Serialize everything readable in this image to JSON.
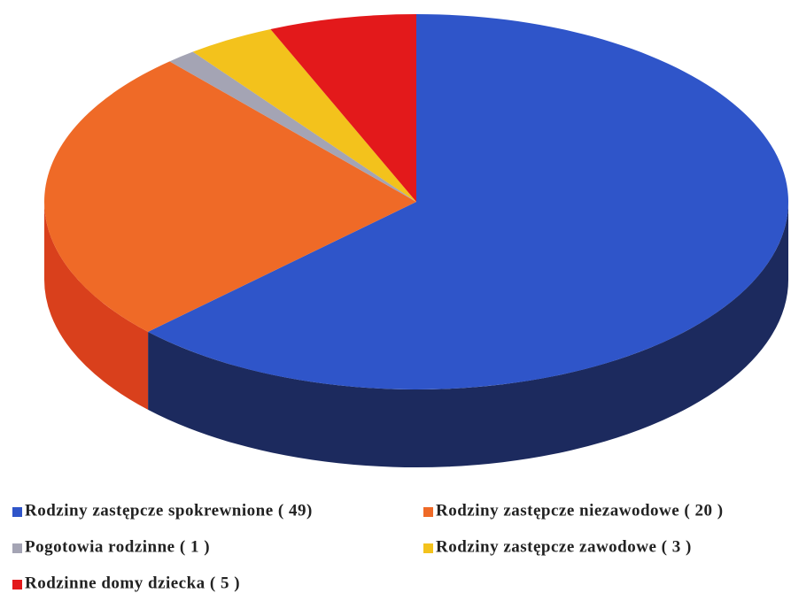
{
  "chart_data": {
    "type": "pie",
    "categories": [
      "Rodziny zastępcze spokrewnione ( 49)",
      "Rodziny zastępcze niezawodowe ( 20 )",
      "Pogotowia rodzinne ( 1 )",
      "Rodziny zastępcze zawodowe ( 3 )",
      "Rodzinne domy dziecka ( 5 )"
    ],
    "values": [
      49,
      20,
      1,
      3,
      5
    ],
    "colors": [
      "#2f55c9",
      "#ef6a27",
      "#a4a4b4",
      "#f3c21c",
      "#e3191b"
    ],
    "side_colors": [
      "#1c2a5e",
      "#d9401c",
      "#6c6c7c",
      "#b08a10",
      "#a01010"
    ],
    "legend": "bottom"
  }
}
